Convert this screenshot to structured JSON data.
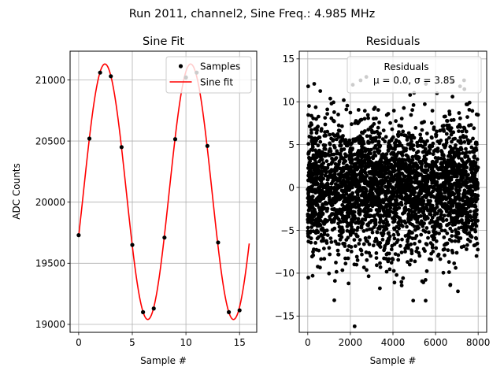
{
  "figure": {
    "suptitle": "Run 2011, channel2, Sine Freq.: 4.985 MHz"
  },
  "chart_data": [
    {
      "type": "line",
      "title": "Sine Fit",
      "xlabel": "Sample #",
      "ylabel": "ADC Counts",
      "xlim": [
        -0.8,
        16.6
      ],
      "ylim": [
        18935,
        21235
      ],
      "xticks": [
        0,
        5,
        10,
        15
      ],
      "yticks": [
        19000,
        19500,
        20000,
        20500,
        21000
      ],
      "grid": true,
      "legend": {
        "placement": "top-right",
        "entries": [
          "Samples",
          "Sine fit"
        ]
      },
      "series": [
        {
          "name": "Samples",
          "kind": "scatter",
          "color": "#000000",
          "x": [
            0,
            1,
            2,
            3,
            4,
            5,
            6,
            7,
            8,
            9,
            10,
            11,
            12,
            13,
            14,
            15
          ],
          "y": [
            19730,
            20520,
            21060,
            21030,
            20450,
            19650,
            19100,
            19130,
            19710,
            20515,
            21020,
            21060,
            20460,
            19670,
            19100,
            19115
          ]
        },
        {
          "name": "Sine fit",
          "kind": "line",
          "color": "#ff0000",
          "model": {
            "offset": 20085,
            "amplitude": 1045,
            "period": 7.99,
            "phase_zero_x": 0.45,
            "x_range": [
              0,
              15.9
            ]
          }
        }
      ]
    },
    {
      "type": "scatter",
      "title": "Residuals",
      "xlabel": "Sample #",
      "ylabel": "",
      "xlim": [
        -400,
        8400
      ],
      "ylim": [
        -16.9,
        15.9
      ],
      "xticks": [
        0,
        2000,
        4000,
        6000,
        8000
      ],
      "yticks": [
        -15,
        -10,
        -5,
        0,
        5,
        10,
        15
      ],
      "grid": true,
      "legend": {
        "placement": "top-right",
        "title": "Residuals",
        "text": "$\\mu$ = 0.0, $\\sigma$ = 3.85"
      },
      "series": [
        {
          "name": "Residuals",
          "color": "#000000",
          "n_points": 8000,
          "mean": 0.0,
          "std": 3.85,
          "x_range": [
            0,
            8000
          ],
          "highlighted_points": [
            {
              "x": 2200,
              "y": -16.2
            },
            {
              "x": 2750,
              "y": 12.9
            },
            {
              "x": 20,
              "y": 11.8
            },
            {
              "x": 4950,
              "y": -13.2
            }
          ]
        }
      ]
    }
  ],
  "text": {
    "subplot1_title": "Sine Fit",
    "subplot2_title": "Residuals",
    "xlabel1": "Sample #",
    "xlabel2": "Sample #",
    "ylabel1": "ADC Counts",
    "legend1_samples": "Samples",
    "legend1_fit": "Sine fit",
    "legend2_title": "Residuals",
    "legend2_mu": "μ = 0.0, σ = 3.85"
  }
}
